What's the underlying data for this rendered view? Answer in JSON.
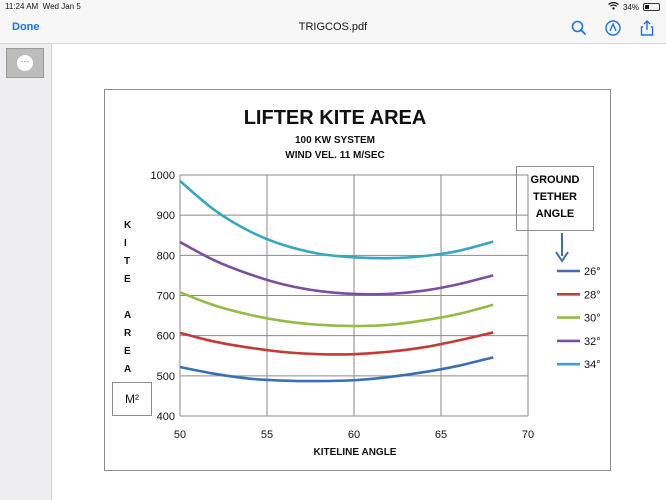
{
  "status": {
    "time": "11:24 AM",
    "date": "Wed Jan 5",
    "battery": "34%",
    "battery_level": 0.34
  },
  "nav": {
    "done_label": "Done",
    "title": "TRIGCOS.pdf",
    "icons": [
      "search-icon",
      "markup-icon",
      "share-icon"
    ]
  },
  "sidebar": {
    "thumb_icon": "ellipsis-icon",
    "thumb_dots": "···"
  },
  "chart_data": {
    "type": "line",
    "title": "LIFTER KITE AREA",
    "subtitle": [
      "100 KW SYSTEM",
      "WIND VEL. 11 M/SEC"
    ],
    "xlabel": "KITELINE  ANGLE",
    "ylabel_letters": [
      "K",
      "I",
      "T",
      "E",
      "",
      "A",
      "R",
      "E",
      "A"
    ],
    "unit_label": "M²",
    "xlim": [
      50,
      70
    ],
    "ylim": [
      400,
      1000
    ],
    "xticks": [
      50,
      55,
      60,
      65,
      70
    ],
    "yticks": [
      400,
      500,
      600,
      700,
      800,
      900,
      1000
    ],
    "grid": true,
    "legend_title": [
      "GROUND",
      "TETHER",
      "ANGLE"
    ],
    "legend_placement": "right",
    "series": [
      {
        "name": "26°",
        "color": "#3a6fb5",
        "x": [
          50,
          52,
          54,
          56,
          58,
          60,
          62,
          64,
          66,
          68
        ],
        "values": [
          522,
          505,
          493,
          488,
          487,
          489,
          497,
          509,
          525,
          546
        ]
      },
      {
        "name": "28°",
        "color": "#c23b37",
        "x": [
          50,
          52,
          54,
          56,
          58,
          60,
          62,
          64,
          66,
          68
        ],
        "values": [
          607,
          585,
          570,
          559,
          554,
          554,
          560,
          571,
          588,
          608
        ]
      },
      {
        "name": "30°",
        "color": "#94bb44",
        "x": [
          50,
          52,
          54,
          56,
          58,
          60,
          62,
          64,
          66,
          68
        ],
        "values": [
          708,
          675,
          652,
          636,
          627,
          624,
          627,
          638,
          654,
          677
        ]
      },
      {
        "name": "32°",
        "color": "#7b4f9e",
        "x": [
          50,
          52,
          54,
          56,
          58,
          60,
          62,
          64,
          66,
          68
        ],
        "values": [
          833,
          787,
          753,
          727,
          711,
          704,
          704,
          712,
          728,
          750
        ]
      },
      {
        "name": "34°",
        "color": "#35a7c0",
        "x": [
          50,
          52,
          54,
          56,
          58,
          60,
          62,
          64,
          66,
          68
        ],
        "values": [
          985,
          912,
          860,
          825,
          804,
          795,
          793,
          798,
          811,
          834
        ]
      }
    ]
  }
}
